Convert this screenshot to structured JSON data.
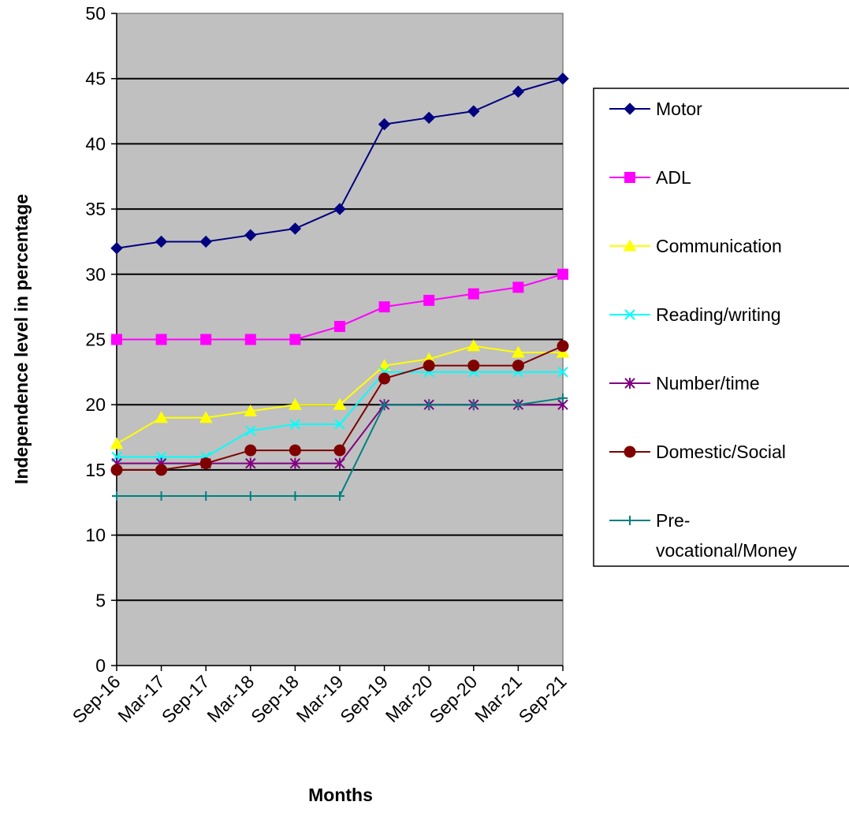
{
  "chart_data": {
    "type": "line",
    "title": "",
    "xlabel": "Months",
    "ylabel": "Independence level in percentage",
    "ylim": [
      0,
      50
    ],
    "yticks": [
      "0",
      "5",
      "10",
      "15",
      "20",
      "25",
      "30",
      "35",
      "40",
      "45",
      "50"
    ],
    "categories": [
      "Sep-16",
      "Mar-17",
      "Sep-17",
      "Mar-18",
      "Sep-18",
      "Mar-19",
      "Sep-19",
      "Mar-20",
      "Sep-20",
      "Mar-21",
      "Sep-21"
    ],
    "grid": true,
    "plot_background": "#c0c0c0",
    "legend_position": "right",
    "series": [
      {
        "name": "Motor",
        "color": "#000080",
        "marker": "diamond",
        "values": [
          32,
          32.5,
          32.5,
          33,
          33.5,
          35,
          41.5,
          42,
          42.5,
          44,
          45
        ]
      },
      {
        "name": "ADL",
        "color": "#ff00ff",
        "marker": "square",
        "values": [
          25,
          25,
          25,
          25,
          25,
          26,
          27.5,
          28,
          28.5,
          29,
          30
        ]
      },
      {
        "name": "Communication",
        "color": "#ffff00",
        "marker": "triangle",
        "values": [
          17,
          19,
          19,
          19.5,
          20,
          20,
          23,
          23.5,
          24.5,
          24,
          24
        ]
      },
      {
        "name": "Reading/writing",
        "color": "#00ffff",
        "marker": "x",
        "values": [
          16,
          16,
          16,
          18,
          18.5,
          18.5,
          22.5,
          22.5,
          22.5,
          22.5,
          22.5
        ]
      },
      {
        "name": "Number/time",
        "color": "#800080",
        "marker": "asterisk",
        "values": [
          15.5,
          15.5,
          15.5,
          15.5,
          15.5,
          15.5,
          20,
          20,
          20,
          20,
          20
        ]
      },
      {
        "name": "Domestic/Social",
        "color": "#800000",
        "marker": "circle",
        "values": [
          15,
          15,
          15.5,
          16.5,
          16.5,
          16.5,
          22,
          23,
          23,
          23,
          24.5
        ]
      },
      {
        "name": "Pre-vocational/Money",
        "legend_lines": [
          "Pre-",
          "vocational/Money"
        ],
        "color": "#008080",
        "marker": "plus",
        "values": [
          13,
          13,
          13,
          13,
          13,
          13,
          20,
          20,
          20,
          20,
          20.5
        ]
      }
    ]
  }
}
